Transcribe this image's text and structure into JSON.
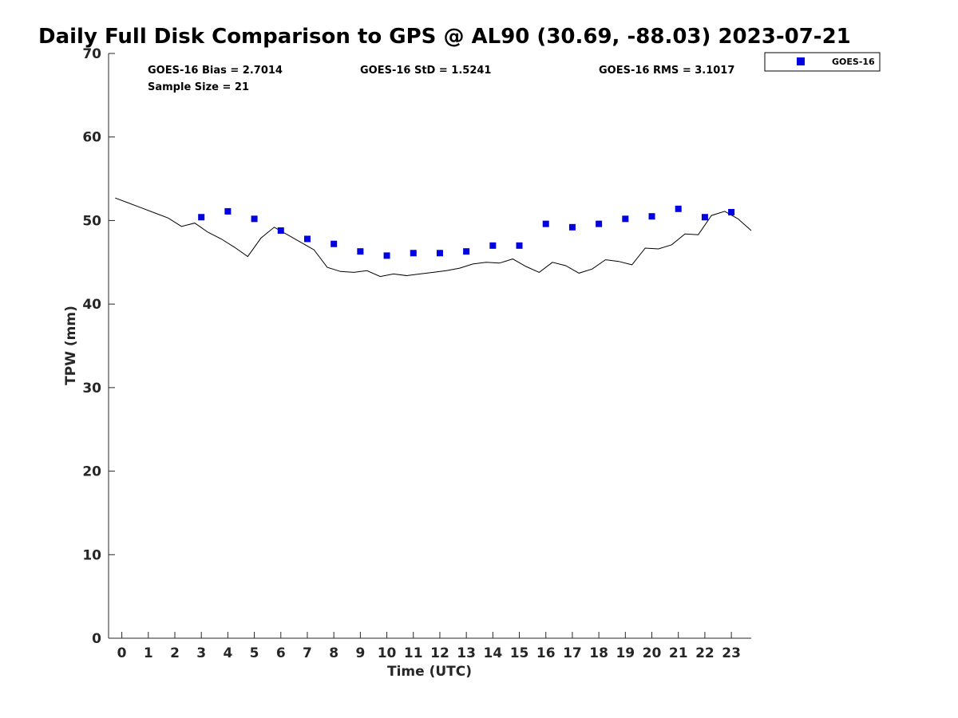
{
  "chart_data": {
    "type": "scatter",
    "title": "Daily Full Disk Comparison to GPS @ AL90 (30.69, -88.03) 2023-07-21",
    "xlabel": "Time (UTC)",
    "ylabel": "TPW (mm)",
    "xlim": [
      -0.5,
      23.75
    ],
    "ylim": [
      0,
      70
    ],
    "xticks": [
      0,
      1,
      2,
      3,
      4,
      5,
      6,
      7,
      8,
      9,
      10,
      11,
      12,
      13,
      14,
      15,
      16,
      17,
      18,
      19,
      20,
      21,
      22,
      23
    ],
    "yticks": [
      0,
      10,
      20,
      30,
      40,
      50,
      60,
      70
    ],
    "grid": false,
    "legend": {
      "position": "top-right-outside",
      "entries": [
        "GOES-16"
      ]
    },
    "stats": {
      "bias": "GOES-16 Bias = 2.7014",
      "std": "GOES-16 StD = 1.5241",
      "rms": "GOES-16 RMS = 3.1017",
      "sample": "Sample Size = 21"
    },
    "series": [
      {
        "name": "GOES-16",
        "kind": "scatter",
        "color": "#0000e0",
        "marker": "square",
        "x": [
          3,
          4,
          5,
          6,
          7,
          8,
          9,
          10,
          11,
          12,
          13,
          14,
          15,
          16,
          17,
          18,
          19,
          20,
          21,
          22,
          23
        ],
        "y": [
          50.4,
          51.1,
          50.2,
          48.8,
          47.8,
          47.2,
          46.3,
          45.8,
          46.1,
          46.1,
          46.3,
          47.0,
          47.0,
          49.6,
          49.2,
          49.6,
          50.2,
          50.5,
          51.4,
          50.4,
          51.0
        ]
      },
      {
        "kind": "line",
        "color": "#000000",
        "x": [
          -0.25,
          0.25,
          0.75,
          1.25,
          1.75,
          2.25,
          2.75,
          3.25,
          3.75,
          4.25,
          4.75,
          5.25,
          5.75,
          6.25,
          6.75,
          7.25,
          7.75,
          8.25,
          8.75,
          9.25,
          9.75,
          10.25,
          10.75,
          11.25,
          11.75,
          12.25,
          12.75,
          13.25,
          13.75,
          14.25,
          14.75,
          15.25,
          15.75,
          16.25,
          16.75,
          17.25,
          17.75,
          18.25,
          18.75,
          19.25,
          19.75,
          20.25,
          20.75,
          21.25,
          21.75,
          22.25,
          22.75,
          23.25,
          23.75
        ],
        "y": [
          52.7,
          52.1,
          51.5,
          50.9,
          50.3,
          49.3,
          49.7,
          48.6,
          47.8,
          46.8,
          45.7,
          47.9,
          49.2,
          48.3,
          47.4,
          46.5,
          44.4,
          43.9,
          43.8,
          44.0,
          43.3,
          43.6,
          43.4,
          43.6,
          43.8,
          44.0,
          44.3,
          44.8,
          45.0,
          44.9,
          45.4,
          44.5,
          43.8,
          45.0,
          44.6,
          43.7,
          44.2,
          45.3,
          45.1,
          44.7,
          46.7,
          46.6,
          47.1,
          48.4,
          48.3,
          50.6,
          51.1,
          50.2,
          48.8
        ]
      }
    ]
  }
}
